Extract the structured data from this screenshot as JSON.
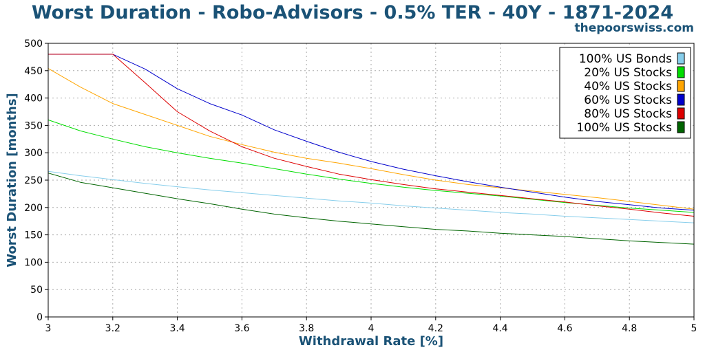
{
  "chart_data": {
    "type": "line",
    "title": "Worst Duration - Robo-Advisors - 0.5% TER - 40Y - 1871-2024",
    "subtitle": "thepoorswiss.com",
    "xlabel": "Withdrawal Rate [%]",
    "ylabel": "Worst Duration [months]",
    "xlim": [
      3,
      5
    ],
    "ylim": [
      0,
      500
    ],
    "xticks": [
      "3",
      "3.2",
      "3.4",
      "3.6",
      "3.8",
      "4",
      "4.2",
      "4.4",
      "4.6",
      "4.8",
      "5"
    ],
    "yticks": [
      "0",
      "50",
      "100",
      "150",
      "200",
      "250",
      "300",
      "350",
      "400",
      "450",
      "500"
    ],
    "grid": true,
    "legend_position": "top-right",
    "x": [
      3.0,
      3.1,
      3.2,
      3.3,
      3.4,
      3.5,
      3.6,
      3.7,
      3.8,
      3.9,
      4.0,
      4.1,
      4.2,
      4.3,
      4.4,
      4.5,
      4.6,
      4.7,
      4.8,
      4.9,
      5.0
    ],
    "series": [
      {
        "name": "100% US Bonds",
        "color": "#87ceeb",
        "values": [
          266,
          258,
          251,
          244,
          238,
          232,
          227,
          222,
          217,
          212,
          208,
          203,
          199,
          195,
          191,
          188,
          184,
          181,
          178,
          175,
          172
        ]
      },
      {
        "name": "20% US Stocks",
        "color": "#00dd00",
        "values": [
          360,
          340,
          325,
          311,
          300,
          290,
          281,
          271,
          261,
          252,
          244,
          237,
          231,
          226,
          221,
          215,
          209,
          204,
          199,
          195,
          191
        ]
      },
      {
        "name": "40% US Stocks",
        "color": "#ffa500",
        "values": [
          454,
          420,
          390,
          370,
          350,
          330,
          315,
          301,
          290,
          281,
          271,
          260,
          250,
          242,
          236,
          230,
          224,
          218,
          211,
          204,
          197
        ]
      },
      {
        "name": "60% US Stocks",
        "color": "#0000cc",
        "values": [
          480,
          480,
          480,
          453,
          417,
          390,
          369,
          342,
          321,
          301,
          284,
          270,
          258,
          247,
          237,
          228,
          219,
          211,
          205,
          199,
          195
        ]
      },
      {
        "name": "80% US Stocks",
        "color": "#dd0000",
        "values": [
          480,
          480,
          480,
          428,
          375,
          340,
          311,
          290,
          275,
          261,
          251,
          242,
          234,
          228,
          222,
          216,
          210,
          203,
          197,
          190,
          184
        ]
      },
      {
        "name": "100% US Stocks",
        "color": "#006400",
        "values": [
          263,
          246,
          236,
          226,
          216,
          207,
          197,
          188,
          181,
          175,
          170,
          165,
          160,
          157,
          153,
          150,
          147,
          143,
          139,
          136,
          133
        ]
      }
    ]
  }
}
